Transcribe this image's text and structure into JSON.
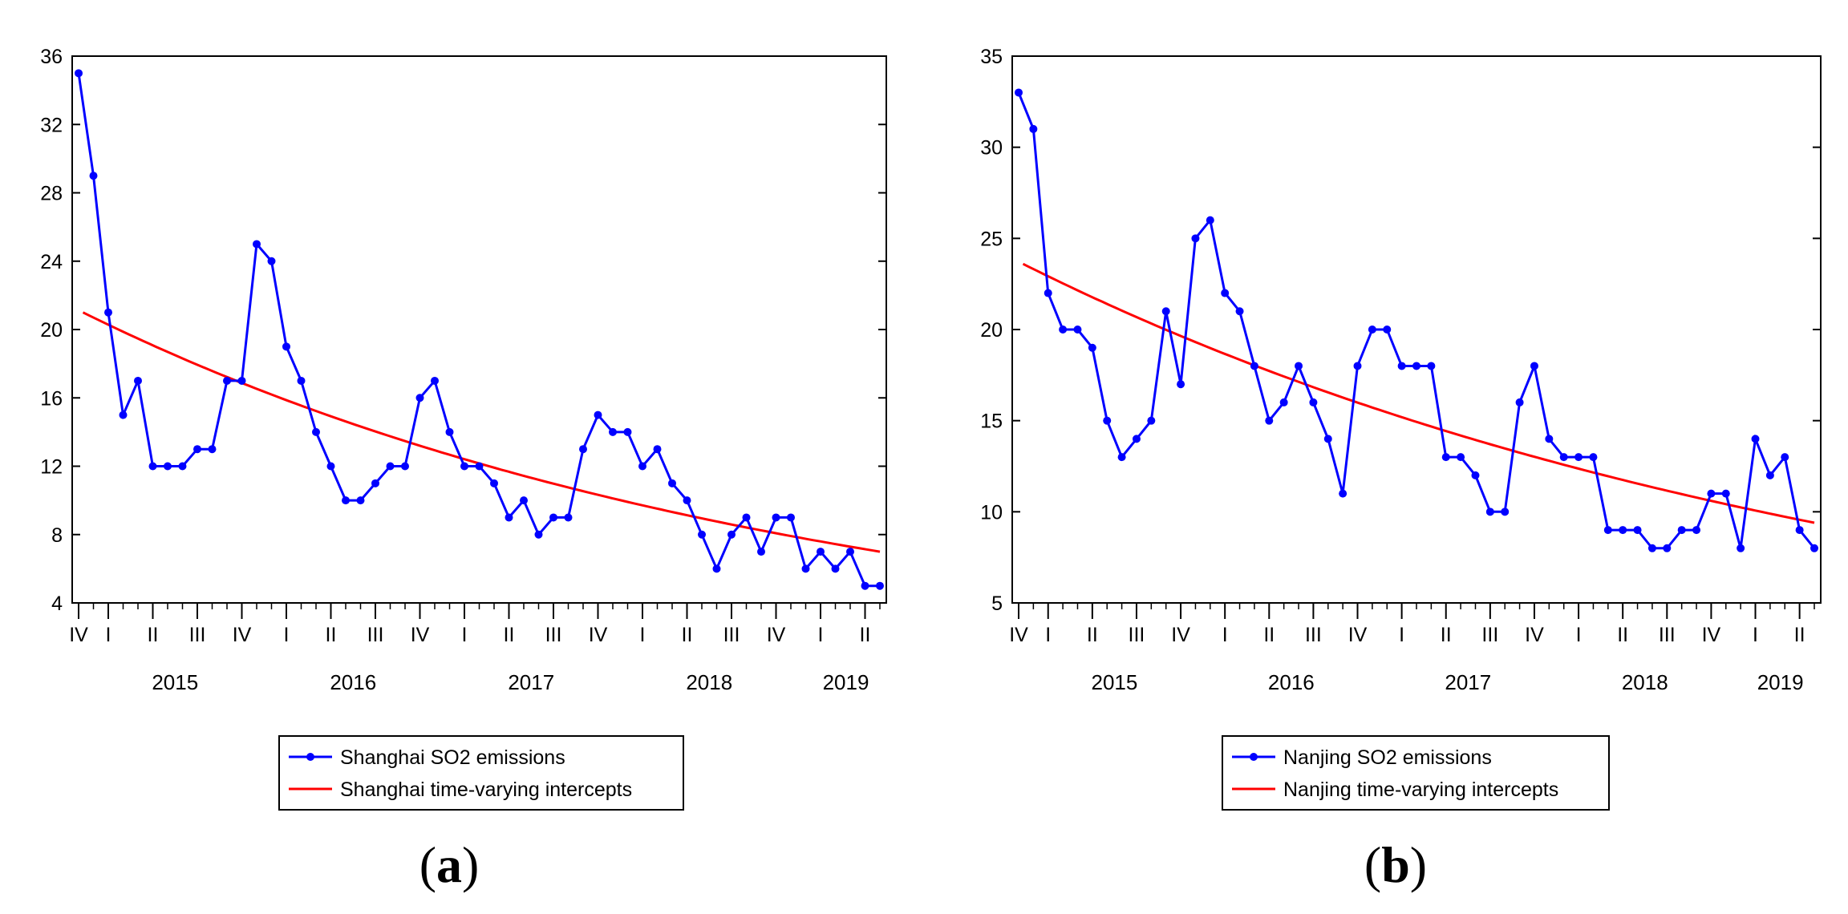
{
  "chart_data": [
    {
      "type": "line",
      "panel_label": "a",
      "ylim": [
        4,
        36
      ],
      "yticks": [
        "4",
        "8",
        "12",
        "16",
        "20",
        "24",
        "28",
        "32",
        "36"
      ],
      "x_quarter_labels": [
        "IV",
        "I",
        "II",
        "III",
        "IV",
        "I",
        "II",
        "III",
        "IV",
        "I",
        "II",
        "III",
        "IV",
        "I",
        "II",
        "III",
        "IV",
        "I",
        "II"
      ],
      "years": [
        "2015",
        "2016",
        "2017",
        "2018",
        "2019"
      ],
      "legend_position": "bottom",
      "series": [
        {
          "name": "Shanghai SO2 emissions",
          "color": "#0000ff",
          "markers": true,
          "values": [
            35,
            29,
            21,
            15,
            17,
            12,
            12,
            12,
            13,
            13,
            17,
            17,
            25,
            24,
            19,
            17,
            14,
            12,
            10,
            10,
            11,
            12,
            12,
            16,
            17,
            14,
            12,
            12,
            11,
            9,
            10,
            8,
            9,
            9,
            13,
            15,
            14,
            14,
            12,
            13,
            11,
            10,
            8,
            6,
            8,
            9,
            7,
            9,
            9,
            6,
            7,
            6,
            7,
            5,
            5
          ]
        },
        {
          "name": "Shanghai time-varying intercepts",
          "color": "#ff0000",
          "markers": false,
          "curve": {
            "start": 21.0,
            "end": 7.0
          }
        }
      ]
    },
    {
      "type": "line",
      "panel_label": "b",
      "ylim": [
        5,
        35
      ],
      "yticks": [
        "5",
        "10",
        "15",
        "20",
        "25",
        "30",
        "35"
      ],
      "x_quarter_labels": [
        "IV",
        "I",
        "II",
        "III",
        "IV",
        "I",
        "II",
        "III",
        "IV",
        "I",
        "II",
        "III",
        "IV",
        "I",
        "II",
        "III",
        "IV",
        "I",
        "II"
      ],
      "years": [
        "2015",
        "2016",
        "2017",
        "2018",
        "2019"
      ],
      "legend_position": "bottom",
      "series": [
        {
          "name": "Nanjing SO2 emissions",
          "color": "#0000ff",
          "markers": true,
          "values": [
            33,
            31,
            22,
            20,
            20,
            19,
            15,
            13,
            14,
            15,
            21,
            17,
            25,
            26,
            22,
            21,
            18,
            15,
            16,
            18,
            16,
            14,
            11,
            18,
            20,
            20,
            18,
            18,
            18,
            13,
            13,
            12,
            10,
            10,
            16,
            18,
            14,
            13,
            13,
            13,
            9,
            9,
            9,
            8,
            8,
            9,
            9,
            11,
            11,
            8,
            14,
            12,
            13,
            9,
            8
          ]
        },
        {
          "name": "Nanjing time-varying intercepts",
          "color": "#ff0000",
          "markers": false,
          "curve": {
            "start": 23.6,
            "end": 9.4
          }
        }
      ]
    }
  ]
}
